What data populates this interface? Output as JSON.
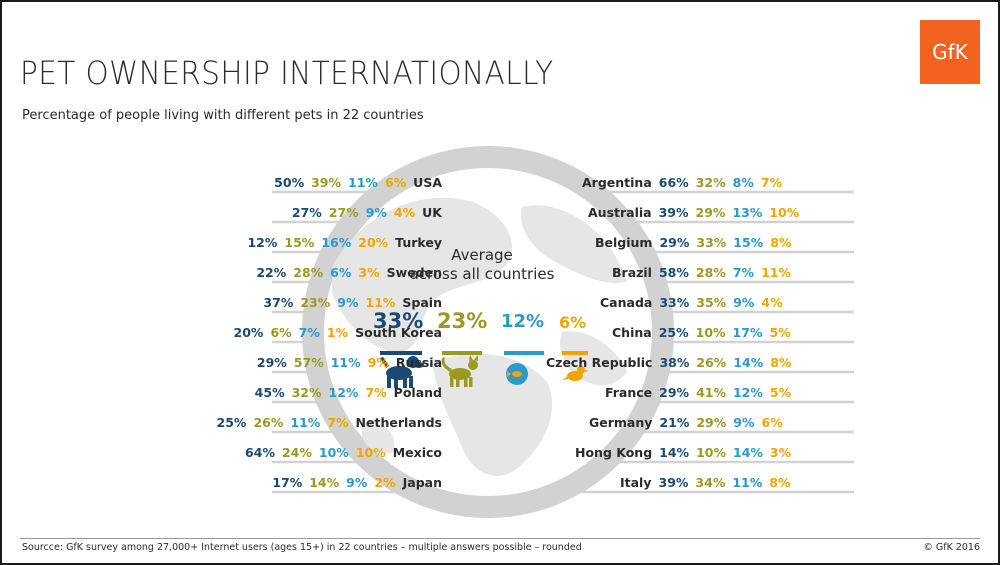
{
  "brand": {
    "logo_text": "GfK",
    "accent": "#f26322"
  },
  "title": "PET OWNERSHIP INTERNATIONALLY",
  "subtitle": "Percentage of people living with different pets in 22 countries",
  "colors": {
    "dog": "#1b4a75",
    "cat": "#9a9a22",
    "fish": "#2a9bc8",
    "bird": "#f0a500"
  },
  "chart_data": {
    "type": "table",
    "columns": [
      "dog",
      "cat",
      "fish",
      "bird"
    ],
    "average": {
      "heading_line1": "Average",
      "heading_line2": "across all countries",
      "values": [
        "33%",
        "23%",
        "12%",
        "6%"
      ],
      "icons": [
        "dog-icon",
        "cat-icon",
        "fish-icon",
        "bird-icon"
      ]
    },
    "left_countries": [
      {
        "country": "USA",
        "values": [
          "50%",
          "39%",
          "11%",
          "6%"
        ]
      },
      {
        "country": "UK",
        "values": [
          "27%",
          "27%",
          "9%",
          "4%"
        ]
      },
      {
        "country": "Turkey",
        "values": [
          "12%",
          "15%",
          "16%",
          "20%"
        ]
      },
      {
        "country": "Sweden",
        "values": [
          "22%",
          "28%",
          "6%",
          "3%"
        ]
      },
      {
        "country": "Spain",
        "values": [
          "37%",
          "23%",
          "9%",
          "11%"
        ]
      },
      {
        "country": "South Korea",
        "values": [
          "20%",
          "6%",
          "7%",
          "1%"
        ]
      },
      {
        "country": "Russia",
        "values": [
          "29%",
          "57%",
          "11%",
          "9%"
        ]
      },
      {
        "country": "Poland",
        "values": [
          "45%",
          "32%",
          "12%",
          "7%"
        ]
      },
      {
        "country": "Netherlands",
        "values": [
          "25%",
          "26%",
          "11%",
          "7%"
        ]
      },
      {
        "country": "Mexico",
        "values": [
          "64%",
          "24%",
          "10%",
          "10%"
        ]
      },
      {
        "country": "Japan",
        "values": [
          "17%",
          "14%",
          "9%",
          "2%"
        ]
      }
    ],
    "right_countries": [
      {
        "country": "Argentina",
        "values": [
          "66%",
          "32%",
          "8%",
          "7%"
        ]
      },
      {
        "country": "Australia",
        "values": [
          "39%",
          "29%",
          "13%",
          "10%"
        ]
      },
      {
        "country": "Belgium",
        "values": [
          "29%",
          "33%",
          "15%",
          "8%"
        ]
      },
      {
        "country": "Brazil",
        "values": [
          "58%",
          "28%",
          "7%",
          "11%"
        ]
      },
      {
        "country": "Canada",
        "values": [
          "33%",
          "35%",
          "9%",
          "4%"
        ]
      },
      {
        "country": "China",
        "values": [
          "25%",
          "10%",
          "17%",
          "5%"
        ]
      },
      {
        "country": "Czech Republic",
        "values": [
          "38%",
          "26%",
          "14%",
          "8%"
        ]
      },
      {
        "country": "France",
        "values": [
          "29%",
          "41%",
          "12%",
          "5%"
        ]
      },
      {
        "country": "Germany",
        "values": [
          "21%",
          "29%",
          "9%",
          "6%"
        ]
      },
      {
        "country": "Hong Kong",
        "values": [
          "14%",
          "10%",
          "14%",
          "3%"
        ]
      },
      {
        "country": "Italy",
        "values": [
          "39%",
          "34%",
          "11%",
          "8%"
        ]
      }
    ]
  },
  "footer": {
    "source": "Sourcce:  GfK survey among 27,000+ Internet users (ages 15+) in 22 countries – multiple answers possible – rounded",
    "copyright": "© GfK 2016"
  }
}
